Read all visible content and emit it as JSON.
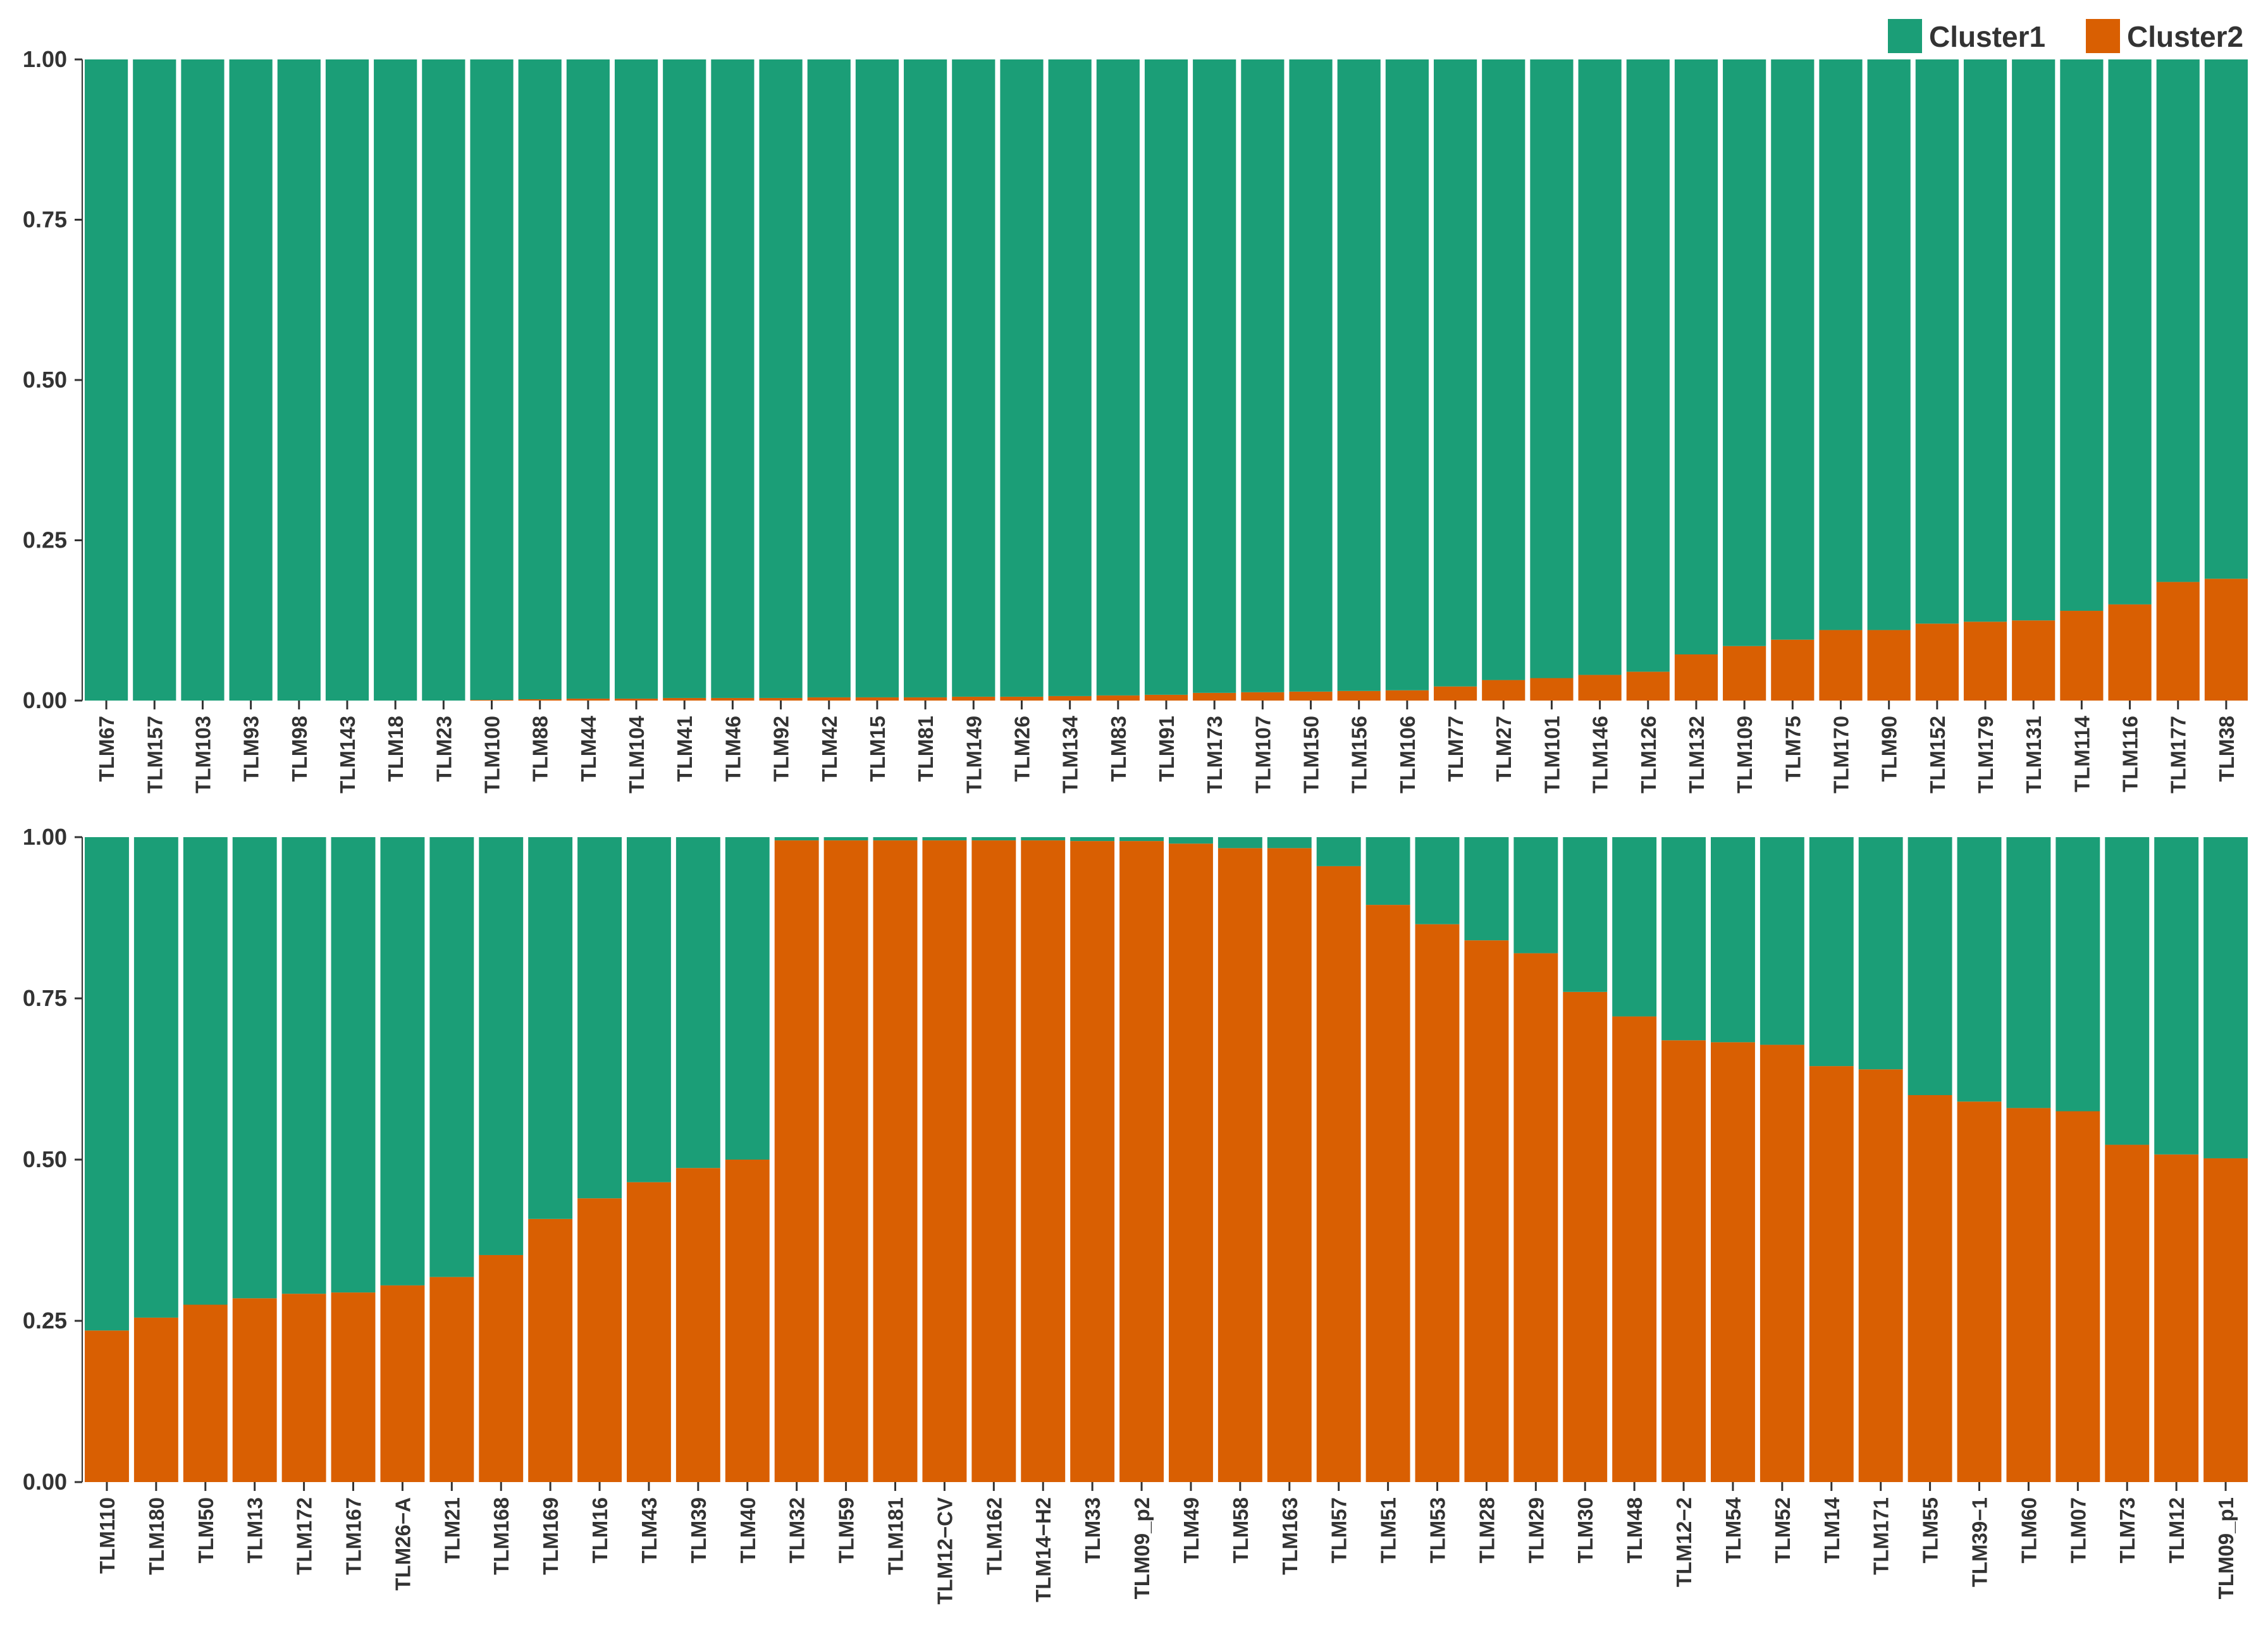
{
  "chart_data": {
    "type": "bar",
    "stacked": true,
    "title": "",
    "xlabel": "",
    "ylabel": "",
    "ylim": [
      0,
      1
    ],
    "yticks": [
      "0.00",
      "0.25",
      "0.50",
      "0.75",
      "1.00"
    ],
    "legend": {
      "position": "top-right",
      "entries": [
        {
          "name": "Cluster1",
          "color": "#1b9e77"
        },
        {
          "name": "Cluster2",
          "color": "#d95f02"
        }
      ]
    },
    "panels": [
      {
        "name": "top",
        "categories": [
          "TLM67",
          "TLM157",
          "TLM103",
          "TLM93",
          "TLM98",
          "TLM143",
          "TLM18",
          "TLM23",
          "TLM100",
          "TLM88",
          "TLM44",
          "TLM104",
          "TLM41",
          "TLM46",
          "TLM92",
          "TLM42",
          "TLM15",
          "TLM81",
          "TLM149",
          "TLM26",
          "TLM134",
          "TLM83",
          "TLM91",
          "TLM173",
          "TLM107",
          "TLM150",
          "TLM156",
          "TLM106",
          "TLM77",
          "TLM27",
          "TLM101",
          "TLM146",
          "TLM126",
          "TLM132",
          "TLM109",
          "TLM75",
          "TLM170",
          "TLM90",
          "TLM152",
          "TLM179",
          "TLM131",
          "TLM114",
          "TLM116",
          "TLM177",
          "TLM38"
        ],
        "series": [
          {
            "name": "Cluster2",
            "values": [
              0,
              0,
              0,
              0,
              0,
              0,
              0,
              0,
              0.001,
              0.002,
              0.003,
              0.003,
              0.004,
              0.004,
              0.004,
              0.005,
              0.005,
              0.005,
              0.006,
              0.006,
              0.007,
              0.008,
              0.009,
              0.012,
              0.013,
              0.014,
              0.015,
              0.016,
              0.022,
              0.032,
              0.035,
              0.04,
              0.045,
              0.072,
              0.085,
              0.095,
              0.11,
              0.11,
              0.12,
              0.123,
              0.125,
              0.14,
              0.15,
              0.185,
              0.19
            ]
          },
          {
            "name": "Cluster1",
            "values": [
              1,
              1,
              1,
              1,
              1,
              1,
              1,
              1,
              0.999,
              0.998,
              0.997,
              0.997,
              0.996,
              0.996,
              0.996,
              0.995,
              0.995,
              0.995,
              0.994,
              0.994,
              0.993,
              0.992,
              0.991,
              0.988,
              0.987,
              0.986,
              0.985,
              0.984,
              0.978,
              0.968,
              0.965,
              0.96,
              0.955,
              0.928,
              0.915,
              0.905,
              0.89,
              0.89,
              0.88,
              0.877,
              0.875,
              0.86,
              0.85,
              0.815,
              0.81
            ]
          }
        ]
      },
      {
        "name": "bottom",
        "categories": [
          "TLM110",
          "TLM180",
          "TLM50",
          "TLM13",
          "TLM172",
          "TLM167",
          "TLM26−A",
          "TLM21",
          "TLM168",
          "TLM169",
          "TLM16",
          "TLM43",
          "TLM39",
          "TLM40",
          "TLM32",
          "TLM59",
          "TLM181",
          "TLM12−CV",
          "TLM162",
          "TLM14−H2",
          "TLM33",
          "TLM09_p2",
          "TLM49",
          "TLM58",
          "TLM163",
          "TLM57",
          "TLM51",
          "TLM53",
          "TLM28",
          "TLM29",
          "TLM30",
          "TLM48",
          "TLM12−2",
          "TLM54",
          "TLM52",
          "TLM14",
          "TLM171",
          "TLM55",
          "TLM39−1",
          "TLM60",
          "TLM07",
          "TLM73",
          "TLM12",
          "TLM09_p1"
        ],
        "series": [
          {
            "name": "Cluster2",
            "values": [
              0.235,
              0.255,
              0.275,
              0.285,
              0.292,
              0.294,
              0.305,
              0.318,
              0.352,
              0.408,
              0.44,
              0.465,
              0.487,
              0.5,
              0.995,
              0.995,
              0.995,
              0.995,
              0.995,
              0.995,
              0.994,
              0.994,
              0.99,
              0.983,
              0.983,
              0.955,
              0.895,
              0.865,
              0.84,
              0.82,
              0.76,
              0.722,
              0.685,
              0.682,
              0.678,
              0.645,
              0.64,
              0.6,
              0.59,
              0.58,
              0.575,
              0.523,
              0.508,
              0.502
            ]
          },
          {
            "name": "Cluster1",
            "values": [
              0.765,
              0.745,
              0.725,
              0.715,
              0.708,
              0.706,
              0.695,
              0.682,
              0.648,
              0.592,
              0.56,
              0.535,
              0.513,
              0.5,
              0.005,
              0.005,
              0.005,
              0.005,
              0.005,
              0.005,
              0.006,
              0.006,
              0.01,
              0.017,
              0.017,
              0.045,
              0.105,
              0.135,
              0.16,
              0.18,
              0.24,
              0.278,
              0.315,
              0.318,
              0.322,
              0.355,
              0.36,
              0.4,
              0.41,
              0.42,
              0.425,
              0.477,
              0.492,
              0.498
            ]
          }
        ]
      }
    ]
  }
}
